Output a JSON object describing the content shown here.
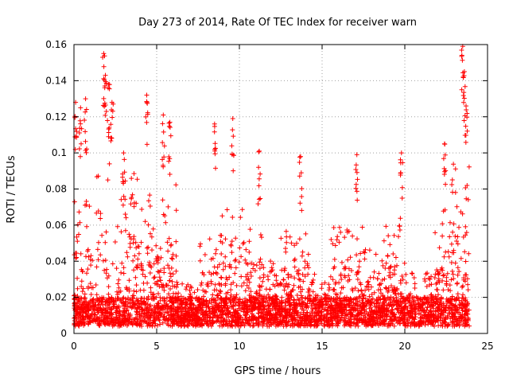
{
  "chart_data": {
    "type": "scatter",
    "title": "Day 273 of 2014, Rate Of TEC Index for receiver warn",
    "xlabel": "GPS time / hours",
    "ylabel": "ROTI / TECUs",
    "xlim": [
      0,
      25
    ],
    "ylim": [
      0,
      0.16
    ],
    "xticks": [
      0,
      5,
      10,
      15,
      20,
      25
    ],
    "xtick_labels": [
      "0",
      "5",
      "10",
      "15",
      "20",
      "25"
    ],
    "yticks": [
      0,
      0.02,
      0.04,
      0.06,
      0.08,
      0.1,
      0.12,
      0.14,
      0.16
    ],
    "ytick_labels": [
      "0",
      "0.02",
      "0.04",
      "0.06",
      "0.08",
      "0.1",
      "0.12",
      "0.14",
      "0.16"
    ],
    "grid": true,
    "marker": "plus",
    "color": "#ff0000",
    "series": [
      {
        "name": "ROTI",
        "x_range": [
          0,
          23.9
        ],
        "baseline_band": [
          0.005,
          0.02
        ],
        "peaks": [
          {
            "x": 0.1,
            "y": 0.128
          },
          {
            "x": 0.4,
            "y": 0.125
          },
          {
            "x": 0.7,
            "y": 0.13
          },
          {
            "x": 1.8,
            "y": 0.155
          },
          {
            "x": 1.9,
            "y": 0.143
          },
          {
            "x": 2.1,
            "y": 0.138
          },
          {
            "x": 2.3,
            "y": 0.128
          },
          {
            "x": 3.0,
            "y": 0.1
          },
          {
            "x": 4.4,
            "y": 0.132
          },
          {
            "x": 5.4,
            "y": 0.121
          },
          {
            "x": 5.8,
            "y": 0.117
          },
          {
            "x": 8.5,
            "y": 0.116
          },
          {
            "x": 9.6,
            "y": 0.119
          },
          {
            "x": 11.2,
            "y": 0.101
          },
          {
            "x": 13.7,
            "y": 0.098
          },
          {
            "x": 17.1,
            "y": 0.099
          },
          {
            "x": 19.8,
            "y": 0.1
          },
          {
            "x": 22.4,
            "y": 0.105
          },
          {
            "x": 23.5,
            "y": 0.159
          },
          {
            "x": 23.6,
            "y": 0.145
          },
          {
            "x": 23.7,
            "y": 0.126
          }
        ],
        "activity_levels": [
          {
            "from": 0,
            "to": 1.2,
            "level": 0.07
          },
          {
            "from": 1.2,
            "to": 2.3,
            "level": 0.09
          },
          {
            "from": 2.3,
            "to": 4.0,
            "level": 0.085
          },
          {
            "from": 4.0,
            "to": 6.2,
            "level": 0.08
          },
          {
            "from": 6.2,
            "to": 7.5,
            "level": 0.025
          },
          {
            "from": 7.5,
            "to": 8.7,
            "level": 0.05
          },
          {
            "from": 8.7,
            "to": 10.5,
            "level": 0.065
          },
          {
            "from": 10.5,
            "to": 11.5,
            "level": 0.06
          },
          {
            "from": 11.5,
            "to": 12.5,
            "level": 0.04
          },
          {
            "from": 12.5,
            "to": 14.2,
            "level": 0.055
          },
          {
            "from": 14.2,
            "to": 15.5,
            "level": 0.03
          },
          {
            "from": 15.5,
            "to": 17.5,
            "level": 0.055
          },
          {
            "from": 17.5,
            "to": 18.7,
            "level": 0.045
          },
          {
            "from": 18.7,
            "to": 20.0,
            "level": 0.06
          },
          {
            "from": 20.0,
            "to": 21.8,
            "level": 0.03
          },
          {
            "from": 21.8,
            "to": 22.8,
            "level": 0.065
          },
          {
            "from": 22.8,
            "to": 23.9,
            "level": 0.09
          }
        ]
      }
    ]
  }
}
